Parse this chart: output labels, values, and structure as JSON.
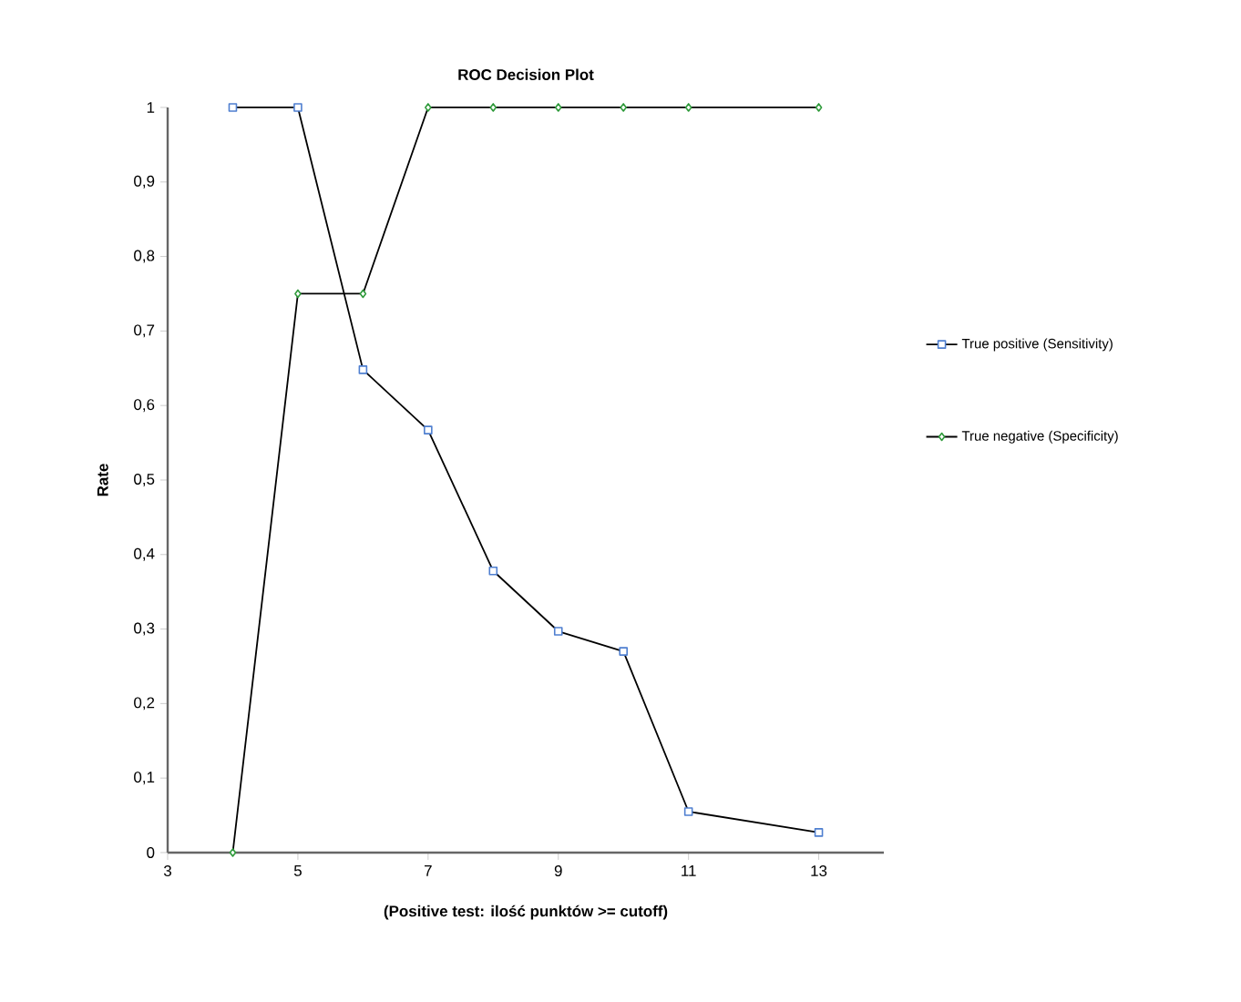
{
  "chart_data": {
    "type": "line",
    "title": "ROC Decision Plot",
    "xlabel": "(Positive test: ilość punktów >= cutoff)",
    "ylabel": "Rate",
    "x": [
      4,
      5,
      6,
      7,
      8,
      9,
      10,
      11,
      13
    ],
    "series": [
      {
        "name": "True positive (Sensitivity)",
        "color": "#4f7fd0",
        "marker": "square",
        "values": [
          1,
          1,
          0.648,
          0.567,
          0.378,
          0.297,
          0.27,
          0.055,
          0.027
        ]
      },
      {
        "name": "True negative (Specificity)",
        "color": "#2e9a3a",
        "marker": "diamond",
        "values": [
          0,
          0.75,
          0.75,
          1,
          1,
          1,
          1,
          1,
          1
        ]
      }
    ],
    "xlim": [
      3,
      14
    ],
    "xticks": [
      3,
      5,
      7,
      9,
      11,
      13
    ],
    "ylim": [
      0,
      1
    ],
    "yticks": [
      0,
      {
        "value": 0.1,
        "label": "0,1"
      },
      {
        "value": 0.2,
        "label": "0,2"
      },
      {
        "value": 0.3,
        "label": "0,3"
      },
      {
        "value": 0.4,
        "label": "0,4"
      },
      {
        "value": 0.5,
        "label": "0,5"
      },
      {
        "value": 0.6,
        "label": "0,6"
      },
      {
        "value": 0.7,
        "label": "0,7"
      },
      {
        "value": 0.8,
        "label": "0,8"
      },
      {
        "value": 0.9,
        "label": "0,9"
      },
      1
    ],
    "grid": false,
    "legend": "right",
    "line_style": "solid"
  }
}
